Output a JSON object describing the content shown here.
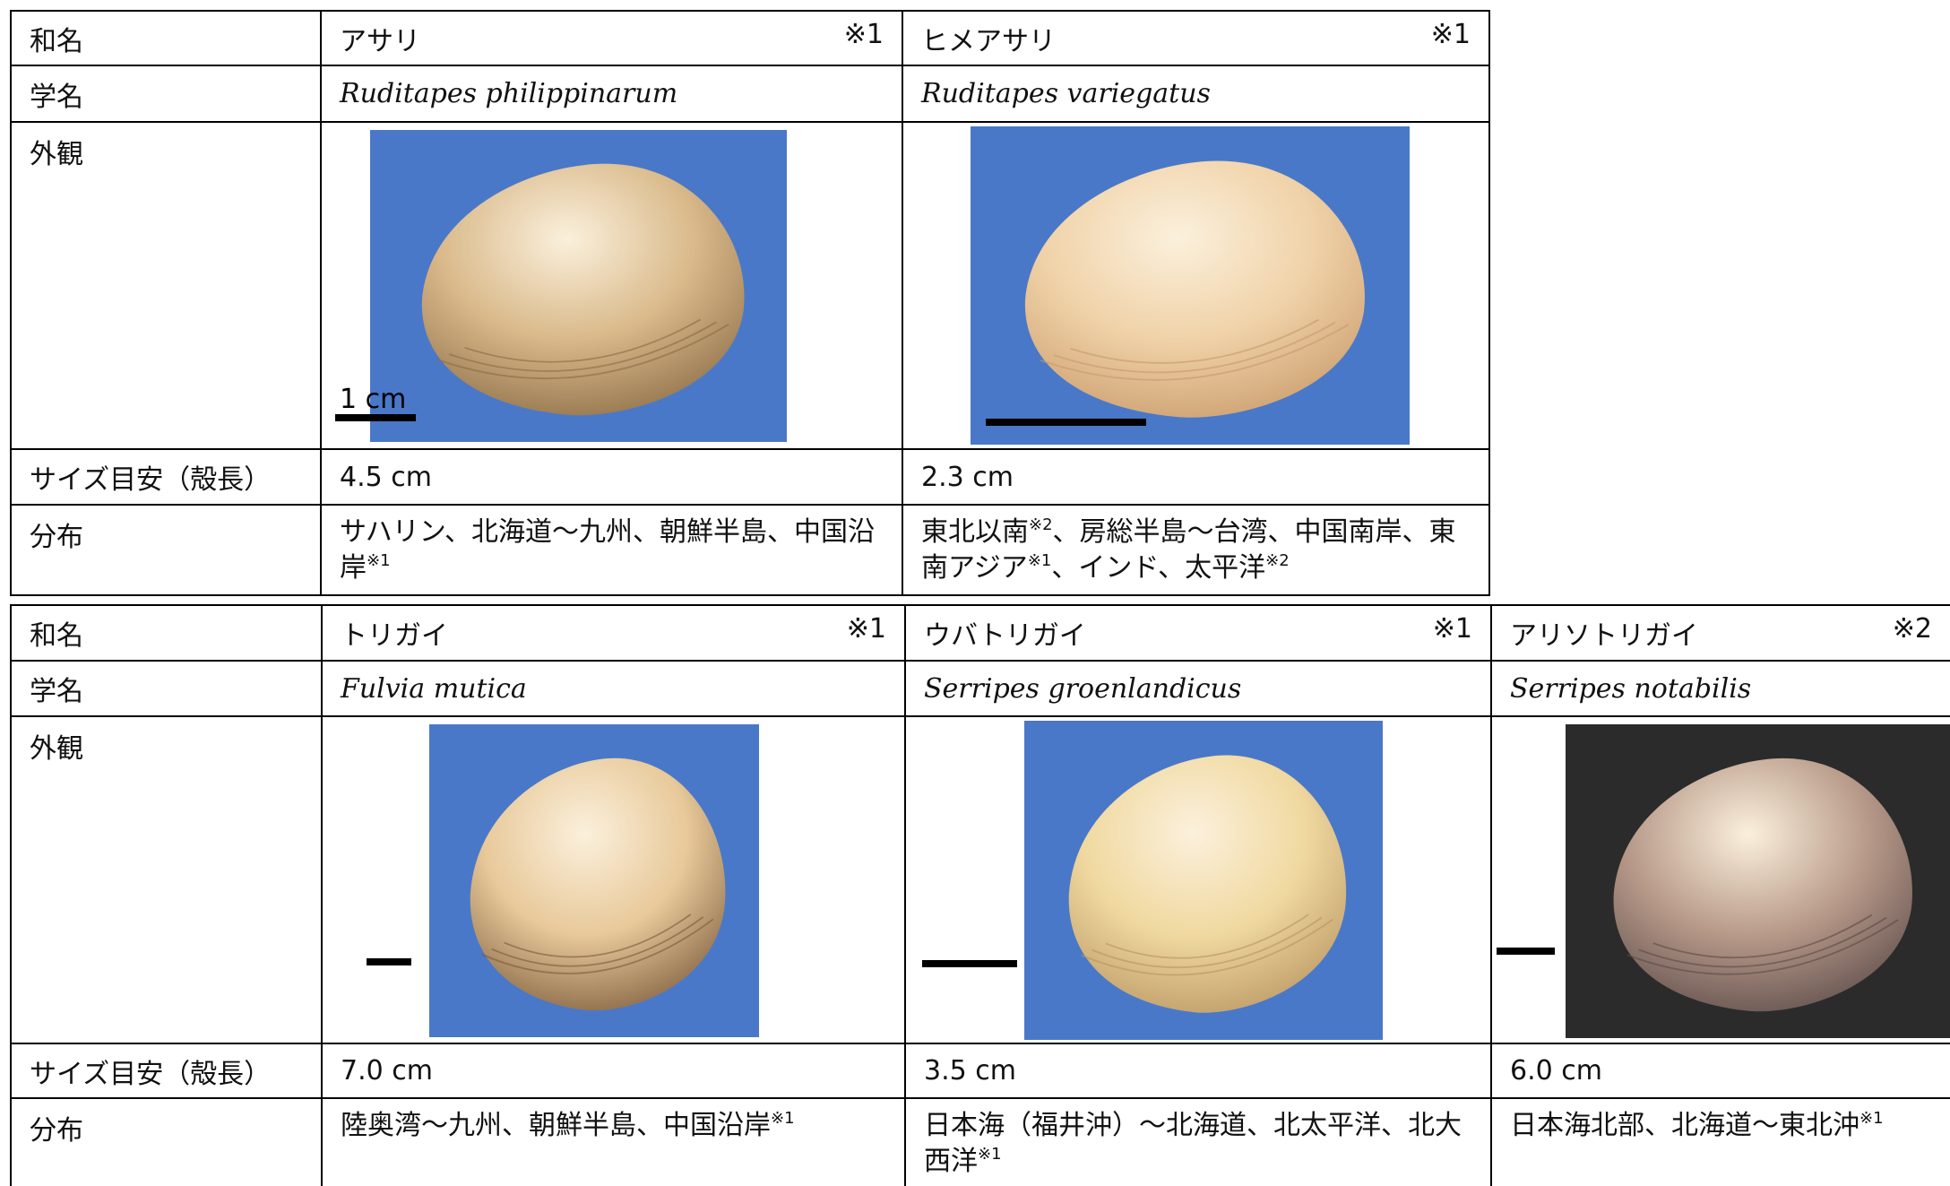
{
  "tables": [
    {
      "row_labels": [
        "和名",
        "学名",
        "外観",
        "サイズ目安（殻長）",
        "分布"
      ],
      "columns": [
        {
          "name": "アサリ",
          "note": "※1",
          "scientific_name": "Ruditapes philippinarum",
          "scale_label": "1 cm",
          "size": "4.5 cm",
          "distribution": [
            {
              "text": "サハリン、北海道～九州、朝鮮半島、中国沿岸",
              "note": "※1"
            }
          ]
        },
        {
          "name": "ヒメアサリ",
          "note": "※1",
          "scientific_name": "Ruditapes variegatus",
          "size": "2.3 cm",
          "distribution": [
            {
              "text": "東北以南",
              "note": "※2"
            },
            {
              "text": "、房総半島～台湾、中国南岸、東南アジア",
              "note": "※1"
            },
            {
              "text": "、インド、太平洋",
              "note": "※2"
            }
          ]
        }
      ]
    },
    {
      "row_labels": [
        "和名",
        "学名",
        "外観",
        "サイズ目安（殻長）",
        "分布"
      ],
      "columns": [
        {
          "name": "トリガイ",
          "note": "※1",
          "scientific_name": "Fulvia mutica",
          "size": "7.0 cm",
          "distribution": [
            {
              "text": "陸奥湾～九州、朝鮮半島、中国沿岸",
              "note": "※1"
            }
          ]
        },
        {
          "name": "ウバトリガイ",
          "note": "※1",
          "scientific_name": "Serripes groenlandicus",
          "size": "3.5 cm",
          "distribution": [
            {
              "text": "日本海（福井沖）～北海道、北太平洋、北大西洋",
              "note": "※1"
            }
          ]
        },
        {
          "name": "アリソトリガイ",
          "note": "※2",
          "scientific_name": "Serripes notabilis",
          "size": "6.0 cm",
          "distribution": [
            {
              "text": "日本海北部、北海道～東北沖",
              "note": "※1"
            }
          ]
        }
      ]
    }
  ]
}
